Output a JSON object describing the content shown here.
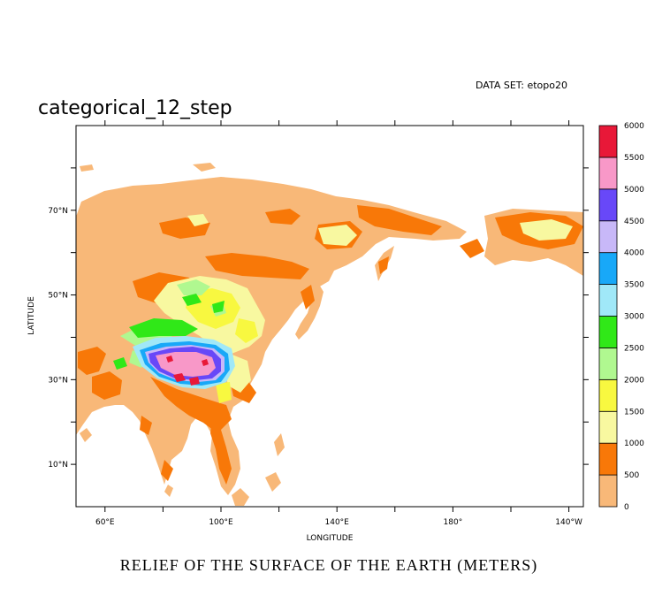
{
  "chart_data": {
    "type": "heatmap",
    "title": "categorical_12_step",
    "data_set_label": "DATA SET: etopo20",
    "xlabel": "LONGITUDE",
    "ylabel": "LATITUDE",
    "caption": "RELIEF OF THE SURFACE OF THE EARTH (METERS)",
    "x_range": [
      50,
      225
    ],
    "y_range": [
      0,
      90
    ],
    "x_tick_labels": [
      {
        "lon": 60,
        "label": "60°E"
      },
      {
        "lon": 100,
        "label": "100°E"
      },
      {
        "lon": 140,
        "label": "140°E"
      },
      {
        "lon": 180,
        "label": "180°"
      },
      {
        "lon": 220,
        "label": "140°W"
      }
    ],
    "y_tick_labels": [
      {
        "lat": 10,
        "label": "10°N"
      },
      {
        "lat": 30,
        "label": "30°N"
      },
      {
        "lat": 50,
        "label": "50°N"
      },
      {
        "lat": 70,
        "label": "70°N"
      }
    ],
    "colorbar": {
      "levels": [
        "0",
        "500",
        "1000",
        "1500",
        "2000",
        "2500",
        "3000",
        "3500",
        "4000",
        "4500",
        "5000",
        "5500",
        "6000"
      ],
      "colors": [
        "#F8B878",
        "#F87808",
        "#F8F8A0",
        "#F8F840",
        "#B0F890",
        "#30E818",
        "#A0E8F8",
        "#18A8F8",
        "#C8B8F8",
        "#6848F8",
        "#F898C8",
        "#E81838"
      ]
    },
    "ocean_color": "#ffffff"
  }
}
